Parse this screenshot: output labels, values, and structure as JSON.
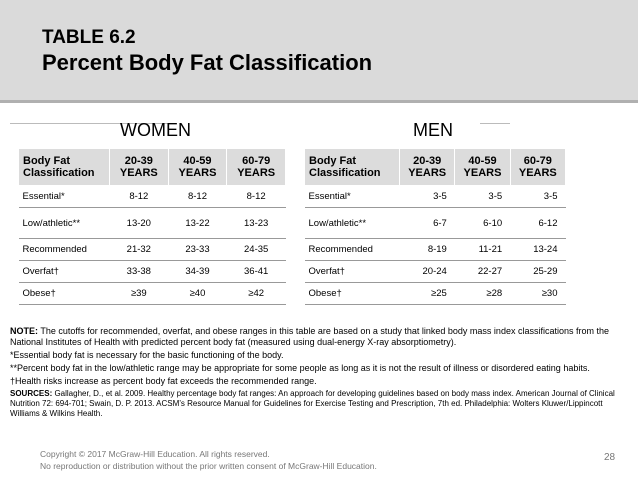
{
  "header": {
    "table_label": "TABLE 6.2",
    "title": "Percent Body Fat Classification"
  },
  "women": {
    "title": "WOMEN",
    "columns": [
      "Body Fat Classification",
      "20-39 YEARS",
      "40-59 YEARS",
      "60-79 YEARS"
    ],
    "rows": [
      {
        "label": "Essential*",
        "values": [
          "8-12",
          "8-12",
          "8-12"
        ]
      },
      {
        "label": "Low/athletic**",
        "values": [
          "13-20",
          "13-22",
          "13-23"
        ]
      },
      {
        "label": "Recommended",
        "values": [
          "21-32",
          "23-33",
          "24-35"
        ]
      },
      {
        "label": "Overfat†",
        "values": [
          "33-38",
          "34-39",
          "36-41"
        ]
      },
      {
        "label": "Obese†",
        "values": [
          "≥39",
          "≥40",
          "≥42"
        ]
      }
    ]
  },
  "men": {
    "title": "MEN",
    "columns": [
      "Body Fat Classification",
      "20-39 YEARS",
      "40-59 YEARS",
      "60-79 YEARS"
    ],
    "rows": [
      {
        "label": "Essential*",
        "values": [
          "3-5",
          "3-5",
          "3-5"
        ]
      },
      {
        "label": "Low/athletic**",
        "values": [
          "6-7",
          "6-10",
          "6-12"
        ]
      },
      {
        "label": "Recommended",
        "values": [
          "8-19",
          "11-21",
          "13-24"
        ]
      },
      {
        "label": "Overfat†",
        "values": [
          "20-24",
          "22-27",
          "25-29"
        ]
      },
      {
        "label": "Obese†",
        "values": [
          "≥25",
          "≥28",
          "≥30"
        ]
      }
    ]
  },
  "notes": {
    "note_label": "NOTE:",
    "note_text": " The cutoffs for recommended, overfat, and obese ranges in this table are based on a study that linked body mass index classifications from the National Institutes of Health with predicted percent body fat (measured using dual-energy X-ray absorptiometry).",
    "essential": "*Essential body fat is necessary for the basic functioning of the body.",
    "low_athletic": "**Percent body fat in the low/athletic range may be appropriate for some people as long as it is not the result of illness or disordered eating habits.",
    "health_risk": "†Health risks increase as percent body fat exceeds the recommended range.",
    "sources_label": "SOURCES:",
    "sources_text": " Gallagher, D., et al. 2009. Healthy percentage body fat ranges: An approach for developing guidelines based on body mass index. American Journal of Clinical Nutrition 72: 694-701; Swain, D. P. 2013. ACSM’s Resource Manual for Guidelines for Exercise Testing and Prescription, 7th ed. Philadelphia: Wolters Kluwer/Lippincott Williams & Wilkins Health."
  },
  "footer": {
    "copyright": "Copyright © 2017 McGraw-Hill Education. All rights reserved.",
    "disclaimer": "No reproduction or distribution without the prior written consent of McGraw-Hill Education.",
    "page_number": "28"
  }
}
